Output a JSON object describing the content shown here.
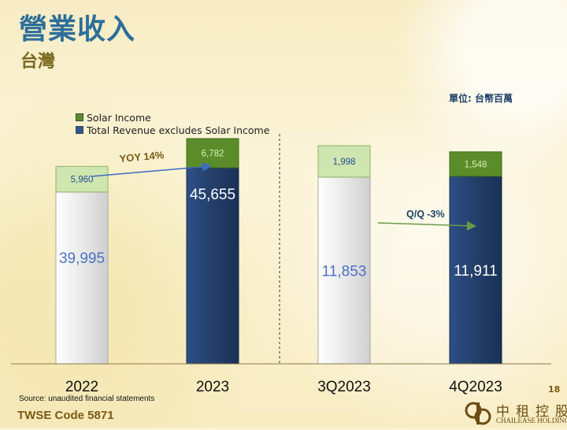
{
  "header": {
    "title": "營業收入",
    "subtitle": "台灣",
    "unit": "單位: 台幣百萬"
  },
  "footer": {
    "source": "Source: unaudited financial statements",
    "code": "TWSE Code 5871",
    "page_number": "18",
    "logo_cn": "中租控股",
    "logo_en": "CHAILEASE HOLDING"
  },
  "chart_data": {
    "type": "bar",
    "stacked": true,
    "categories": [
      "2022",
      "2023",
      "3Q2023",
      "4Q2023"
    ],
    "series": [
      {
        "name": "Total Revenue excludes Solar Income",
        "values": [
          39995,
          45655,
          11853,
          11911
        ]
      },
      {
        "name": "Solar Income",
        "values": [
          5960,
          6782,
          1998,
          1548
        ]
      }
    ],
    "data_labels": {
      "base": [
        "39,995",
        "45,655",
        "11,853",
        "11,911"
      ],
      "solar": [
        "5,960",
        "6,782",
        "1,998",
        "1,548"
      ]
    },
    "legend": [
      {
        "label": "Solar Income",
        "color": "#5b8c2a"
      },
      {
        "label": "Total Revenue excludes Solar Income",
        "color": "#2d5596"
      }
    ],
    "legend_position": "top-left",
    "annotations": [
      {
        "text": "YOY 14%",
        "group": "annual"
      },
      {
        "text": "Q/Q -3%",
        "group": "quarterly"
      }
    ],
    "groups": [
      {
        "name": "annual",
        "categories": [
          "2022",
          "2023"
        ],
        "ymax": 55000
      },
      {
        "name": "quarterly",
        "categories": [
          "3Q2023",
          "4Q2023"
        ],
        "ymax": 15000
      }
    ],
    "colors": {
      "light_base": "#e9e9e9",
      "light_solar": "#cfe6b0",
      "dark_base": "#233f6a",
      "dark_solar": "#5b8c2a",
      "base_label_light": "#4a72c4",
      "base_label_dark": "#ffffff",
      "solar_label_light": "#1f4f8e",
      "solar_label_dark": "#d7f0b8",
      "annual_annotation": "#7a5a12",
      "quarterly_annotation": "#1f3f66",
      "annual_arrow": "#3b6cc0",
      "quarterly_arrow": "#6d9a4a"
    },
    "grid": false
  }
}
